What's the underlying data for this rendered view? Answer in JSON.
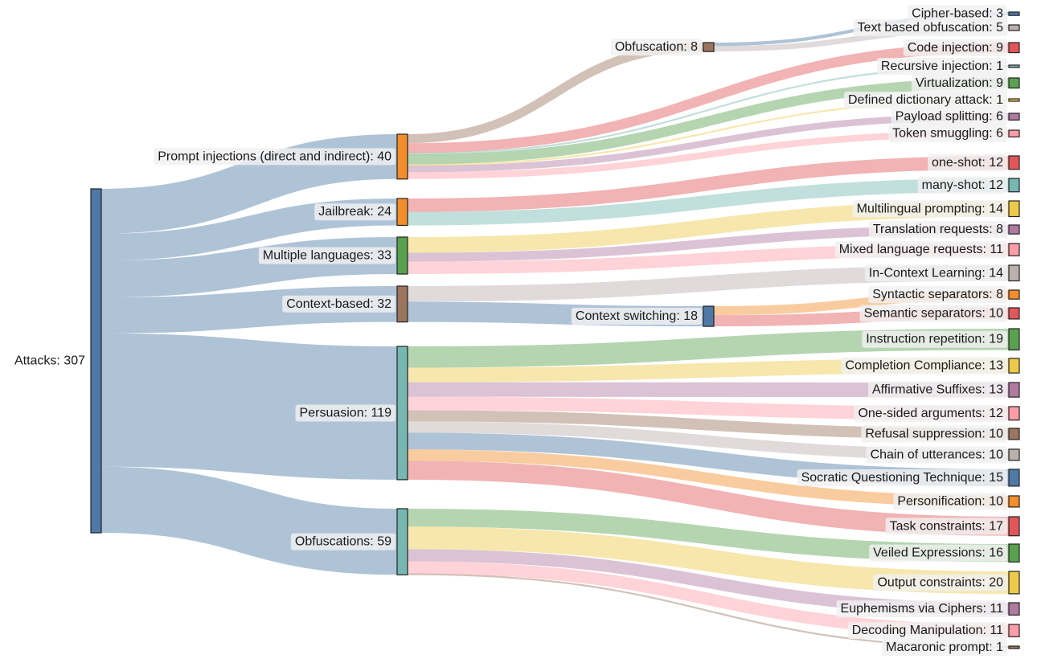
{
  "chart_data": {
    "type": "sankey",
    "colors": {
      "blue": "#4e79a7",
      "orange": "#f28e2b",
      "green": "#59a14f",
      "brown": "#9c755f",
      "teal": "#76b7b2",
      "red": "#e15759",
      "yellow": "#edc948",
      "purple": "#b07aa1",
      "pink": "#ff9da7",
      "gray": "#bab0ac"
    },
    "nodes": [
      {
        "id": "attacks",
        "label": "Attacks: 307",
        "value": 307,
        "color": "#4e79a7"
      },
      {
        "id": "prompt_injections",
        "label": "Prompt injections (direct and indirect): 40",
        "value": 40,
        "color": "#f28e2b"
      },
      {
        "id": "jailbreak",
        "label": "Jailbreak: 24",
        "value": 24,
        "color": "#f28e2b"
      },
      {
        "id": "multiple_languages",
        "label": "Multiple languages: 33",
        "value": 33,
        "color": "#59a14f"
      },
      {
        "id": "context_based",
        "label": "Context-based: 32",
        "value": 32,
        "color": "#9c755f"
      },
      {
        "id": "persuasion",
        "label": "Persuasion: 119",
        "value": 119,
        "color": "#76b7b2"
      },
      {
        "id": "obfuscations",
        "label": "Obfuscations: 59",
        "value": 59,
        "color": "#76b7b2"
      },
      {
        "id": "obfuscation",
        "label": "Obfuscation: 8",
        "value": 8,
        "color": "#9c755f"
      },
      {
        "id": "context_switching",
        "label": "Context switching: 18",
        "value": 18,
        "color": "#4e79a7"
      },
      {
        "id": "cipher_based",
        "label": "Cipher-based: 3",
        "value": 3,
        "color": "#4e79a7"
      },
      {
        "id": "text_obfuscation",
        "label": "Text based obfuscation: 5",
        "value": 5,
        "color": "#bab0ac"
      },
      {
        "id": "code_injection",
        "label": "Code injection: 9",
        "value": 9,
        "color": "#e15759"
      },
      {
        "id": "recursive_injection",
        "label": "Recursive injection: 1",
        "value": 1,
        "color": "#76b7b2"
      },
      {
        "id": "virtualization",
        "label": "Virtualization: 9",
        "value": 9,
        "color": "#59a14f"
      },
      {
        "id": "defined_dictionary",
        "label": "Defined dictionary attack: 1",
        "value": 1,
        "color": "#edc948"
      },
      {
        "id": "payload_splitting",
        "label": "Payload splitting: 6",
        "value": 6,
        "color": "#b07aa1"
      },
      {
        "id": "token_smuggling",
        "label": "Token smuggling: 6",
        "value": 6,
        "color": "#ff9da7"
      },
      {
        "id": "one_shot",
        "label": "one-shot: 12",
        "value": 12,
        "color": "#e15759"
      },
      {
        "id": "many_shot",
        "label": "many-shot: 12",
        "value": 12,
        "color": "#76b7b2"
      },
      {
        "id": "multilingual_prompting",
        "label": "Multilingual prompting: 14",
        "value": 14,
        "color": "#edc948"
      },
      {
        "id": "translation_requests",
        "label": "Translation requests: 8",
        "value": 8,
        "color": "#b07aa1"
      },
      {
        "id": "mixed_language",
        "label": "Mixed language requests: 11",
        "value": 11,
        "color": "#ff9da7"
      },
      {
        "id": "in_context_learning",
        "label": "In-Context Learning: 14",
        "value": 14,
        "color": "#bab0ac"
      },
      {
        "id": "syntactic_separators",
        "label": "Syntactic separators: 8",
        "value": 8,
        "color": "#f28e2b"
      },
      {
        "id": "semantic_separators",
        "label": "Semantic separators: 10",
        "value": 10,
        "color": "#e15759"
      },
      {
        "id": "instruction_repetition",
        "label": "Instruction repetition: 19",
        "value": 19,
        "color": "#59a14f"
      },
      {
        "id": "completion_compliance",
        "label": "Completion Compliance: 13",
        "value": 13,
        "color": "#edc948"
      },
      {
        "id": "affirmative_suffixes",
        "label": "Affirmative Suffixes: 13",
        "value": 13,
        "color": "#b07aa1"
      },
      {
        "id": "one_sided_arguments",
        "label": "One-sided arguments: 12",
        "value": 12,
        "color": "#ff9da7"
      },
      {
        "id": "refusal_suppression",
        "label": "Refusal suppression: 10",
        "value": 10,
        "color": "#9c755f"
      },
      {
        "id": "chain_of_utterances",
        "label": "Chain of utterances: 10",
        "value": 10,
        "color": "#bab0ac"
      },
      {
        "id": "socratic_questioning",
        "label": "Socratic Questioning Technique: 15",
        "value": 15,
        "color": "#4e79a7"
      },
      {
        "id": "personification",
        "label": "Personification: 10",
        "value": 10,
        "color": "#f28e2b"
      },
      {
        "id": "task_constraints",
        "label": "Task constraints: 17",
        "value": 17,
        "color": "#e15759"
      },
      {
        "id": "veiled_expressions",
        "label": "Veiled Expressions: 16",
        "value": 16,
        "color": "#59a14f"
      },
      {
        "id": "output_constraints",
        "label": "Output constraints: 20",
        "value": 20,
        "color": "#edc948"
      },
      {
        "id": "euphemisms_ciphers",
        "label": "Euphemisms via Ciphers: 11",
        "value": 11,
        "color": "#b07aa1"
      },
      {
        "id": "decoding_manipulation",
        "label": "Decoding Manipulation: 11",
        "value": 11,
        "color": "#ff9da7"
      },
      {
        "id": "macaronic_prompt",
        "label": "Macaronic prompt: 1",
        "value": 1,
        "color": "#9c755f"
      }
    ],
    "links": [
      {
        "source": "attacks",
        "target": "prompt_injections",
        "value": 40
      },
      {
        "source": "attacks",
        "target": "jailbreak",
        "value": 24
      },
      {
        "source": "attacks",
        "target": "multiple_languages",
        "value": 33
      },
      {
        "source": "attacks",
        "target": "context_based",
        "value": 32
      },
      {
        "source": "attacks",
        "target": "persuasion",
        "value": 119
      },
      {
        "source": "attacks",
        "target": "obfuscations",
        "value": 59
      },
      {
        "source": "prompt_injections",
        "target": "obfuscation",
        "value": 8
      },
      {
        "source": "prompt_injections",
        "target": "code_injection",
        "value": 9
      },
      {
        "source": "prompt_injections",
        "target": "recursive_injection",
        "value": 1
      },
      {
        "source": "prompt_injections",
        "target": "virtualization",
        "value": 9
      },
      {
        "source": "prompt_injections",
        "target": "defined_dictionary",
        "value": 1
      },
      {
        "source": "prompt_injections",
        "target": "payload_splitting",
        "value": 6
      },
      {
        "source": "prompt_injections",
        "target": "token_smuggling",
        "value": 6
      },
      {
        "source": "obfuscation",
        "target": "cipher_based",
        "value": 3
      },
      {
        "source": "obfuscation",
        "target": "text_obfuscation",
        "value": 5
      },
      {
        "source": "jailbreak",
        "target": "one_shot",
        "value": 12
      },
      {
        "source": "jailbreak",
        "target": "many_shot",
        "value": 12
      },
      {
        "source": "multiple_languages",
        "target": "multilingual_prompting",
        "value": 14
      },
      {
        "source": "multiple_languages",
        "target": "translation_requests",
        "value": 8
      },
      {
        "source": "multiple_languages",
        "target": "mixed_language",
        "value": 11
      },
      {
        "source": "context_based",
        "target": "in_context_learning",
        "value": 14
      },
      {
        "source": "context_based",
        "target": "context_switching",
        "value": 18
      },
      {
        "source": "context_switching",
        "target": "syntactic_separators",
        "value": 8
      },
      {
        "source": "context_switching",
        "target": "semantic_separators",
        "value": 10
      },
      {
        "source": "persuasion",
        "target": "instruction_repetition",
        "value": 19
      },
      {
        "source": "persuasion",
        "target": "completion_compliance",
        "value": 13
      },
      {
        "source": "persuasion",
        "target": "affirmative_suffixes",
        "value": 13
      },
      {
        "source": "persuasion",
        "target": "one_sided_arguments",
        "value": 12
      },
      {
        "source": "persuasion",
        "target": "refusal_suppression",
        "value": 10
      },
      {
        "source": "persuasion",
        "target": "chain_of_utterances",
        "value": 10
      },
      {
        "source": "persuasion",
        "target": "socratic_questioning",
        "value": 15
      },
      {
        "source": "persuasion",
        "target": "personification",
        "value": 10
      },
      {
        "source": "persuasion",
        "target": "task_constraints",
        "value": 17
      },
      {
        "source": "obfuscations",
        "target": "veiled_expressions",
        "value": 16
      },
      {
        "source": "obfuscations",
        "target": "output_constraints",
        "value": 20
      },
      {
        "source": "obfuscations",
        "target": "euphemisms_ciphers",
        "value": 11
      },
      {
        "source": "obfuscations",
        "target": "decoding_manipulation",
        "value": 11
      },
      {
        "source": "obfuscations",
        "target": "macaronic_prompt",
        "value": 1
      }
    ]
  }
}
